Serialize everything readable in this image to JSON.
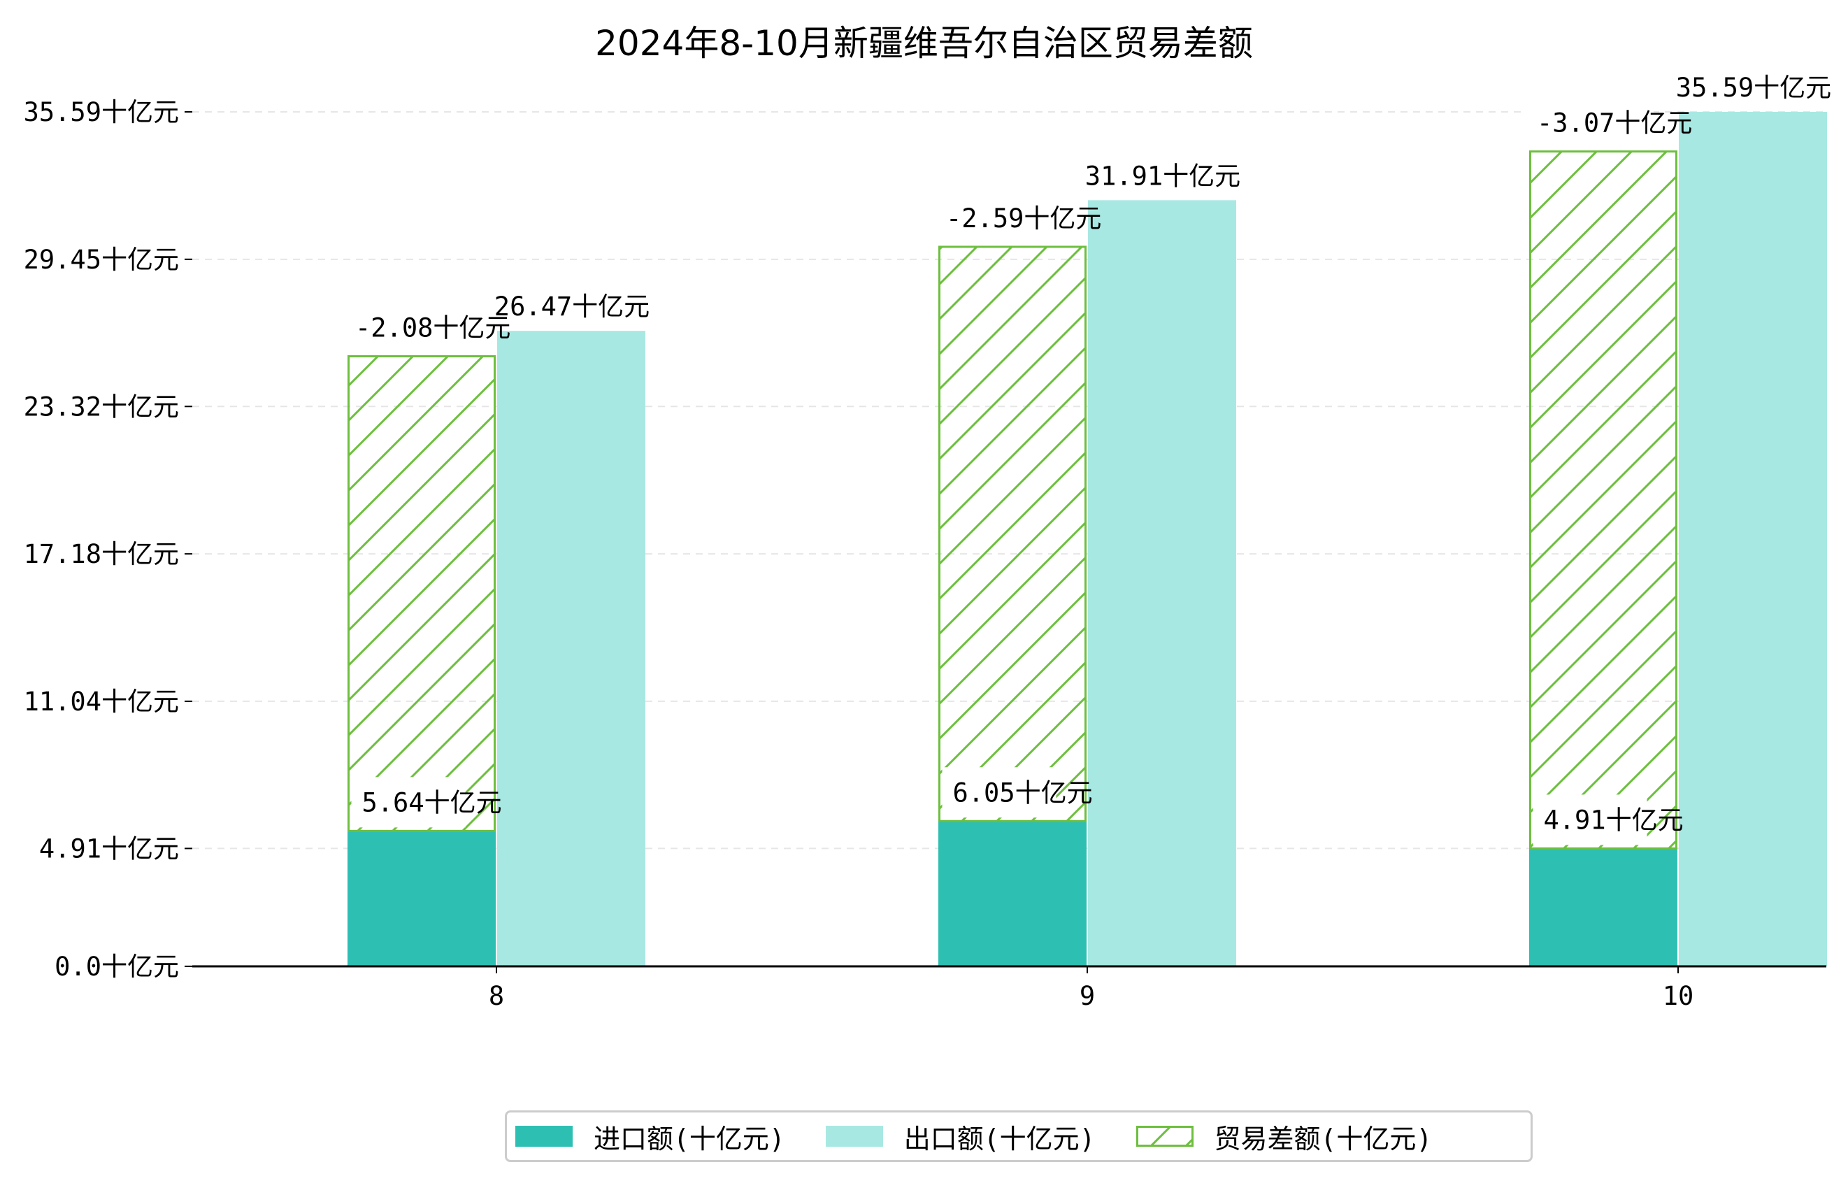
{
  "chart_data": {
    "type": "bar",
    "title": "2024年8-10月新疆维吾尔自治区贸易差额",
    "categories": [
      "8",
      "9",
      "10"
    ],
    "series": [
      {
        "name": "进口额(十亿元)",
        "values": [
          5.64,
          6.05,
          4.91
        ],
        "labels": [
          "5.64十亿元",
          "6.05十亿元",
          "4.91十亿元"
        ],
        "color": "#2ebfb3"
      },
      {
        "name": "出口额(十亿元)",
        "values": [
          26.47,
          31.91,
          35.59
        ],
        "labels": [
          "26.47十亿元",
          "31.91十亿元",
          "35.59十亿元"
        ],
        "color": "#a8e8e3"
      },
      {
        "name": "贸易差额(十亿元)",
        "values": [
          -2.08,
          -2.59,
          -3.07
        ],
        "labels": [
          "-2.08十亿元",
          "-2.59十亿元",
          "-3.07十亿元"
        ],
        "color": "#6dbf3e",
        "hatch": "diagonal",
        "bar_bottom": [
          5.64,
          6.05,
          4.91
        ],
        "bar_top": [
          25.41,
          29.97,
          33.94
        ]
      }
    ],
    "yticks": [
      0.0,
      4.91,
      11.04,
      17.18,
      23.32,
      29.45,
      35.59
    ],
    "ytick_labels": [
      "0.0十亿元",
      "4.91十亿元",
      "11.04十亿元",
      "17.18十亿元",
      "23.32十亿元",
      "29.45十亿元",
      "35.59十亿元"
    ],
    "ylim": [
      0,
      37.0
    ],
    "xlabel": "",
    "ylabel": "",
    "grid": "horizontal dashed",
    "legend_position": "bottom-center"
  }
}
